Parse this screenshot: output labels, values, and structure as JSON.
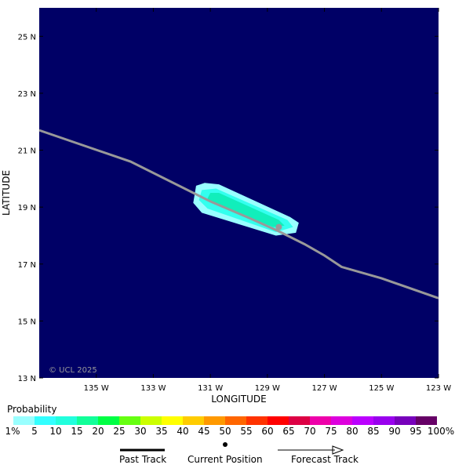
{
  "map": {
    "ocean_color": "#000066",
    "copyright": "© UCL 2025",
    "x_axis_title": "LONGITUDE",
    "y_axis_title": "LATITUDE",
    "lat_ticks": [
      "25 N",
      "23 N",
      "21 N",
      "19 N",
      "17 N",
      "15 N",
      "13 N"
    ],
    "lon_ticks": [
      "135 W",
      "133 W",
      "131 W",
      "129 W",
      "127 W",
      "125 W",
      "123 W"
    ],
    "lat_values": [
      25,
      23,
      21,
      19,
      17,
      15,
      13
    ],
    "lon_values": [
      -135,
      -133,
      -131,
      -129,
      -127,
      -125,
      -123
    ],
    "extent": {
      "lon_min": -137,
      "lon_max": -123,
      "lat_min": 13,
      "lat_max": 26
    }
  },
  "track": {
    "color": "#999999",
    "points": [
      {
        "lon": -137.0,
        "lat": 21.7
      },
      {
        "lon": -133.8,
        "lat": 20.6
      },
      {
        "lon": -131.0,
        "lat": 19.2
      },
      {
        "lon": -129.6,
        "lat": 18.6
      },
      {
        "lon": -128.6,
        "lat": 18.15
      },
      {
        "lon": -127.7,
        "lat": 17.7
      },
      {
        "lon": -127.0,
        "lat": 17.3
      },
      {
        "lon": -126.4,
        "lat": 16.9
      },
      {
        "lon": -125.0,
        "lat": 16.5
      },
      {
        "lon": -123.0,
        "lat": 15.8
      }
    ],
    "current_position": {
      "lon": -128.6,
      "lat": 18.3
    }
  },
  "probability_swath": {
    "outer_color": "#99ffff",
    "mid_color": "#33ffee",
    "inner_color": "#11eebb",
    "outer_polygon": [
      {
        "lon": -131.5,
        "lat": 19.75
      },
      {
        "lon": -131.2,
        "lat": 19.85
      },
      {
        "lon": -130.7,
        "lat": 19.8
      },
      {
        "lon": -128.2,
        "lat": 18.65
      },
      {
        "lon": -127.9,
        "lat": 18.45
      },
      {
        "lon": -128.0,
        "lat": 18.1
      },
      {
        "lon": -128.7,
        "lat": 18.0
      },
      {
        "lon": -131.3,
        "lat": 18.8
      },
      {
        "lon": -131.6,
        "lat": 19.15
      }
    ],
    "mid_polygon": [
      {
        "lon": -131.3,
        "lat": 19.6
      },
      {
        "lon": -130.8,
        "lat": 19.65
      },
      {
        "lon": -128.3,
        "lat": 18.55
      },
      {
        "lon": -128.1,
        "lat": 18.3
      },
      {
        "lon": -128.7,
        "lat": 18.12
      },
      {
        "lon": -131.1,
        "lat": 18.95
      },
      {
        "lon": -131.4,
        "lat": 19.25
      }
    ],
    "inner_polygon": [
      {
        "lon": -131.0,
        "lat": 19.5
      },
      {
        "lon": -130.7,
        "lat": 19.5
      },
      {
        "lon": -128.6,
        "lat": 18.55
      },
      {
        "lon": -128.4,
        "lat": 18.35
      },
      {
        "lon": -128.8,
        "lat": 18.3
      },
      {
        "lon": -130.9,
        "lat": 19.15
      },
      {
        "lon": -131.1,
        "lat": 19.3
      }
    ]
  },
  "legend": {
    "title": "Probability",
    "colors": [
      "#99ffff",
      "#33ffff",
      "#22ffdd",
      "#11ff99",
      "#00ff44",
      "#66ff11",
      "#ccff00",
      "#ffff00",
      "#ffcc00",
      "#ff9900",
      "#ff6600",
      "#ff3300",
      "#ff0000",
      "#dd0044",
      "#ee00aa",
      "#dd00dd",
      "#bb00ff",
      "#9900ee",
      "#7700bb",
      "#660066"
    ],
    "labels": [
      "1%",
      "5",
      "10",
      "15",
      "20",
      "25",
      "30",
      "35",
      "40",
      "45",
      "50",
      "55",
      "60",
      "65",
      "70",
      "75",
      "80",
      "85",
      "90",
      "95",
      "100%"
    ],
    "past_track_label": "Past Track",
    "current_position_label": "Current Position",
    "forecast_track_label": "Forecast Track"
  }
}
